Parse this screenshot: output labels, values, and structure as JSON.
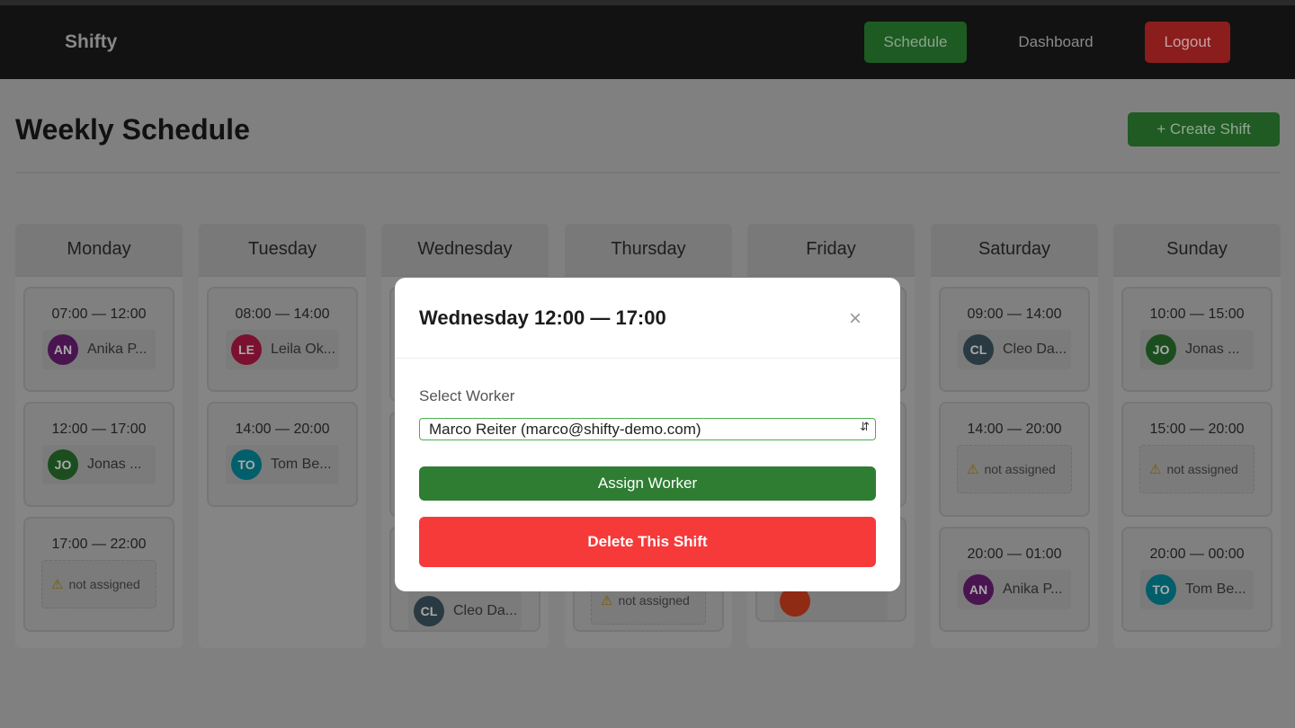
{
  "nav": {
    "brand": "Shifty",
    "schedule": "Schedule",
    "dashboard": "Dashboard",
    "logout": "Logout"
  },
  "page": {
    "title": "Weekly Schedule",
    "create": "+ Create Shift"
  },
  "days": [
    {
      "name": "Monday",
      "cards": [
        {
          "time": "07:00 — 12:00",
          "initials": "AN",
          "worker": "Anika P...",
          "color": "#4a1450"
        },
        {
          "time": "12:00 — 17:00",
          "initials": "JO",
          "worker": "Jonas ...",
          "color": "#1b4d1e"
        },
        {
          "time": "17:00 — 22:00",
          "unassigned": "not assigned"
        }
      ]
    },
    {
      "name": "Tuesday",
      "cards": [
        {
          "time": "08:00 — 14:00",
          "initials": "LE",
          "worker": "Leila Ok...",
          "color": "#7c1030"
        },
        {
          "time": "14:00 — 20:00",
          "initials": "TO",
          "worker": "Tom Be...",
          "color": "#005f6b"
        }
      ]
    },
    {
      "name": "Wednesday",
      "cards": [
        {
          "hidden": true,
          "un": true
        },
        {
          "hidden": true
        },
        {
          "hidden": true,
          "initials": "CL",
          "worker": "Cleo Da...",
          "color": "#2a3a42"
        }
      ]
    },
    {
      "name": "Thursday",
      "cards": [
        {
          "hidden": true
        },
        {
          "hidden": true
        },
        {
          "hidden": true,
          "unassigned": "not assigned"
        }
      ]
    },
    {
      "name": "Friday",
      "cards": [
        {
          "hidden": true
        },
        {
          "hidden": true
        },
        {
          "hidden": true,
          "color": "#8f2a14"
        }
      ]
    },
    {
      "name": "Saturday",
      "cards": [
        {
          "time": "09:00 — 14:00",
          "initials": "CL",
          "worker": "Cleo Da...",
          "color": "#2a3a42"
        },
        {
          "time": "14:00 — 20:00",
          "unassigned": "not assigned"
        },
        {
          "time": "20:00 — 01:00",
          "initials": "AN",
          "worker": "Anika P...",
          "color": "#4a1450"
        }
      ]
    },
    {
      "name": "Sunday",
      "cards": [
        {
          "time": "10:00 — 15:00",
          "initials": "JO",
          "worker": "Jonas ...",
          "color": "#1b4d1e"
        },
        {
          "time": "15:00 — 20:00",
          "unassigned": "not assigned"
        },
        {
          "time": "20:00 — 00:00",
          "initials": "TO",
          "worker": "Tom Be...",
          "color": "#005f6b"
        }
      ]
    }
  ],
  "modal": {
    "title": "Wednesday 12:00 — 17:00",
    "close": "×",
    "label": "Select Worker",
    "selected": "Marco Reiter (marco@shifty-demo.com)",
    "assign": "Assign Worker",
    "delete": "Delete This Shift"
  }
}
